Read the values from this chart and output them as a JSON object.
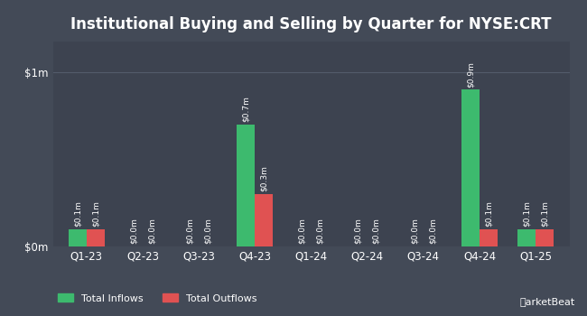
{
  "title": "Institutional Buying and Selling by Quarter for NYSE:CRT",
  "quarters": [
    "Q1-23",
    "Q2-23",
    "Q3-23",
    "Q4-23",
    "Q1-24",
    "Q2-24",
    "Q3-24",
    "Q4-24",
    "Q1-25"
  ],
  "inflows": [
    0.1,
    0.0,
    0.0,
    0.7,
    0.0,
    0.0,
    0.0,
    0.9,
    0.1
  ],
  "outflows": [
    0.1,
    0.0,
    0.0,
    0.3,
    0.0,
    0.0,
    0.0,
    0.1,
    0.1
  ],
  "inflow_labels": [
    "$0.1m",
    "$0.0m",
    "$0.0m",
    "$0.7m",
    "$0.0m",
    "$0.0m",
    "$0.0m",
    "$0.9m",
    "$0.1m"
  ],
  "outflow_labels": [
    "$0.1m",
    "$0.0m",
    "$0.0m",
    "$0.3m",
    "$0.0m",
    "$0.0m",
    "$0.0m",
    "$0.1m",
    "$0.1m"
  ],
  "bg_color": "#434a57",
  "plot_bg_color": "#3d4350",
  "inflow_color": "#3dba6e",
  "outflow_color": "#e05252",
  "text_color": "#ffffff",
  "grid_color": "#545c6b",
  "yticks": [
    0.0,
    1.0
  ],
  "ytick_labels": [
    "$0m",
    "$1m"
  ],
  "ylim": [
    0,
    1.18
  ],
  "bar_width": 0.32,
  "title_fontsize": 12,
  "label_fontsize": 6.5,
  "tick_fontsize": 8.5,
  "legend_fontsize": 8
}
